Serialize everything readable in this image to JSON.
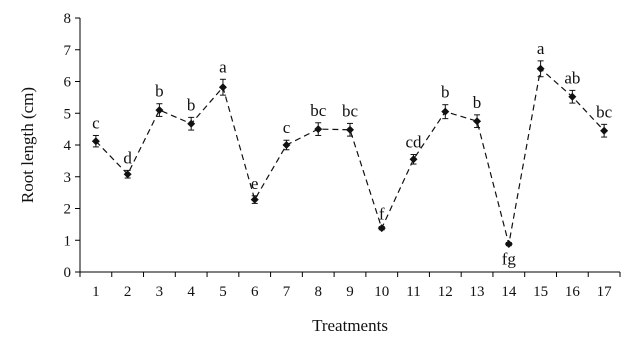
{
  "chart_data": {
    "type": "line",
    "title": "",
    "xlabel": "Treatments",
    "ylabel": "Root length (cm)",
    "ylim": [
      0,
      8
    ],
    "yticks": [
      0,
      1,
      2,
      3,
      4,
      5,
      6,
      7,
      8
    ],
    "grid": false,
    "legend": "none",
    "categories": [
      "1",
      "2",
      "3",
      "4",
      "5",
      "6",
      "7",
      "8",
      "9",
      "10",
      "11",
      "12",
      "13",
      "14",
      "15",
      "16",
      "17"
    ],
    "series": [
      {
        "values": [
          4.12,
          3.08,
          5.1,
          4.67,
          5.82,
          2.28,
          4.0,
          4.5,
          4.48,
          1.38,
          3.55,
          5.05,
          4.75,
          0.88,
          6.4,
          5.52,
          4.45
        ],
        "errors": [
          0.18,
          0.12,
          0.2,
          0.2,
          0.25,
          0.12,
          0.15,
          0.2,
          0.2,
          0.05,
          0.15,
          0.22,
          0.2,
          0.05,
          0.25,
          0.2,
          0.2
        ],
        "labels": [
          "c",
          "d",
          "b",
          "b",
          "a",
          "e",
          "c",
          "bc",
          "bc",
          "f",
          "cd",
          "b",
          "b",
          "fg",
          "a",
          "ab",
          "bc"
        ]
      }
    ],
    "colors": {
      "series": "#111111",
      "axis": "#000000"
    }
  }
}
